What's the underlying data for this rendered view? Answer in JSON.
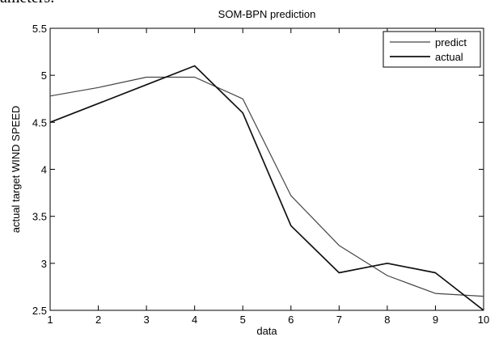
{
  "page": {
    "fragment_text": "ameters."
  },
  "chart_data": {
    "type": "line",
    "title": "SOM-BPN prediction",
    "xlabel": "data",
    "ylabel": "actual target WIND SPEED",
    "xlim": [
      1,
      10
    ],
    "ylim": [
      2.5,
      5.5
    ],
    "x": [
      1,
      2,
      3,
      4,
      5,
      6,
      7,
      8,
      9,
      10
    ],
    "xticks": [
      "1",
      "2",
      "3",
      "4",
      "5",
      "6",
      "7",
      "8",
      "9",
      "10"
    ],
    "yticks": [
      "2.5",
      "3",
      "3.5",
      "4",
      "4.5",
      "5",
      "5.5"
    ],
    "grid": false,
    "legend_position": "top-right",
    "series": [
      {
        "name": "predict",
        "values": [
          4.78,
          4.87,
          4.98,
          4.98,
          4.75,
          3.72,
          3.19,
          2.87,
          2.68,
          2.65
        ],
        "color": "#444444"
      },
      {
        "name": "actual",
        "values": [
          4.5,
          4.7,
          4.9,
          5.1,
          4.6,
          3.4,
          2.9,
          3.0,
          2.9,
          2.5
        ],
        "color": "#111111"
      }
    ]
  }
}
